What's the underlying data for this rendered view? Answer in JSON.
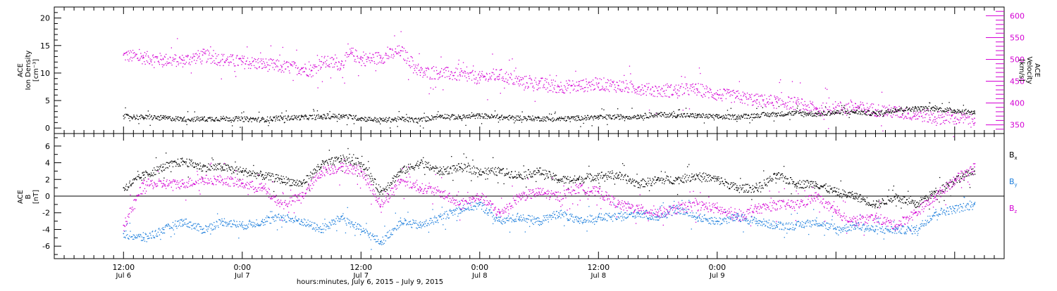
{
  "chart_data": [
    {
      "type": "scatter",
      "panel": "top",
      "ylabel_left": [
        "ACE",
        "Ion Density",
        "[cm⁻³]"
      ],
      "ylabel_right": [
        "ACE",
        "Velocity",
        "[km/s]"
      ],
      "ylim_left": [
        -1,
        22
      ],
      "ylim_right": [
        330,
        620
      ],
      "yticks_left": [
        0,
        5,
        10,
        15,
        20
      ],
      "ytick_labels_left": [
        "0",
        "5",
        "10",
        "15",
        "20"
      ],
      "yticks_right": [
        350,
        400,
        450,
        500,
        550,
        600
      ],
      "ytick_labels_right": [
        "350",
        "400",
        "450",
        "500",
        "550",
        "600"
      ],
      "grid": false,
      "colors": {
        "density": "#000000",
        "velocity": "#d400d4"
      },
      "series": [
        {
          "key": "density",
          "axis": "left",
          "color": "#000000",
          "x": [
            0,
            2,
            4,
            6,
            8,
            10,
            12,
            14,
            16,
            18,
            20,
            22,
            24,
            26,
            28,
            30,
            32,
            34,
            36,
            38,
            40,
            42,
            44,
            46,
            48,
            50,
            52,
            54,
            56,
            58,
            60,
            62,
            64,
            66,
            68,
            70,
            72,
            74,
            76,
            78,
            80,
            82,
            84,
            86
          ],
          "y": [
            2.2,
            2.0,
            1.9,
            1.7,
            1.7,
            1.8,
            1.7,
            1.6,
            1.9,
            2.0,
            2.1,
            2.3,
            1.8,
            1.5,
            1.7,
            1.5,
            2.3,
            2.0,
            2.3,
            2.0,
            1.9,
            1.8,
            1.7,
            1.9,
            2.0,
            2.1,
            2.2,
            2.5,
            2.4,
            2.3,
            2.1,
            2.1,
            2.4,
            2.6,
            2.8,
            2.6,
            2.9,
            3.0,
            2.7,
            3.4,
            3.6,
            3.6,
            3.2,
            2.9
          ]
        },
        {
          "key": "velocity",
          "axis": "right",
          "color": "#d400d4",
          "x": [
            0,
            2,
            4,
            6,
            8,
            10,
            12,
            14,
            16,
            18,
            19,
            20,
            22,
            23,
            24,
            26,
            28,
            30,
            32,
            34,
            36,
            38,
            40,
            42,
            44,
            46,
            48,
            50,
            52,
            54,
            56,
            58,
            60,
            62,
            64,
            66,
            68,
            70,
            72,
            74,
            76,
            78,
            80,
            82,
            84,
            86
          ],
          "y": [
            510,
            505,
            500,
            498,
            510,
            500,
            495,
            490,
            484,
            480,
            475,
            495,
            490,
            515,
            500,
            505,
            520,
            470,
            470,
            465,
            458,
            465,
            450,
            445,
            438,
            440,
            445,
            440,
            435,
            428,
            430,
            432,
            420,
            415,
            407,
            403,
            400,
            385,
            390,
            390,
            385,
            380,
            375,
            368,
            365,
            365
          ]
        }
      ]
    },
    {
      "type": "scatter",
      "panel": "bottom",
      "ylabel_left": [
        "ACE",
        "B",
        "[nT]"
      ],
      "ylim": [
        -7.5,
        7.5
      ],
      "yticks": [
        -6,
        -4,
        -2,
        0,
        2,
        4,
        6
      ],
      "ytick_labels": [
        "-6",
        "-4",
        "-2",
        "0",
        "2",
        "4",
        "6"
      ],
      "zero_line": true,
      "grid": false,
      "legend_position": "right",
      "colors": {
        "Bx": "#000000",
        "By": "#1e7fdc",
        "Bz": "#d400d4"
      },
      "series": [
        {
          "key": "Bx",
          "legend_main": "B",
          "legend_sub": "x",
          "color": "#000000",
          "x": [
            0,
            2,
            4,
            6,
            8,
            10,
            12,
            14,
            16,
            18,
            20,
            22,
            24,
            26,
            28,
            30,
            32,
            34,
            36,
            38,
            40,
            42,
            44,
            46,
            48,
            50,
            52,
            54,
            56,
            58,
            60,
            62,
            64,
            66,
            68,
            70,
            72,
            74,
            76,
            78,
            80,
            82,
            84,
            86
          ],
          "y": [
            1.0,
            2.5,
            3.5,
            4.2,
            3.5,
            3.5,
            3.0,
            2.5,
            2.0,
            1.5,
            3.8,
            4.5,
            4.0,
            0.5,
            3.0,
            4.0,
            3.0,
            3.5,
            3.0,
            3.0,
            2.5,
            3.0,
            2.0,
            2.0,
            2.5,
            2.5,
            1.5,
            2.0,
            2.0,
            2.5,
            2.0,
            1.0,
            1.0,
            2.5,
            1.5,
            1.5,
            0.5,
            0.0,
            -1.0,
            0.0,
            -1.0,
            0.5,
            2.0,
            3.0
          ]
        },
        {
          "key": "By",
          "legend_main": "B",
          "legend_sub": "y",
          "color": "#1e7fdc",
          "x": [
            0,
            2,
            4,
            6,
            8,
            10,
            12,
            14,
            16,
            18,
            20,
            22,
            24,
            26,
            28,
            30,
            32,
            34,
            36,
            38,
            40,
            42,
            44,
            46,
            48,
            50,
            52,
            54,
            56,
            58,
            60,
            62,
            64,
            66,
            68,
            70,
            72,
            74,
            76,
            78,
            80,
            82,
            84,
            86
          ],
          "y": [
            -4.5,
            -5.0,
            -4.0,
            -3.0,
            -4.0,
            -3.0,
            -3.5,
            -3.0,
            -2.5,
            -3.0,
            -4.0,
            -2.5,
            -4.0,
            -5.5,
            -3.0,
            -3.5,
            -2.5,
            -1.5,
            -1.0,
            -3.0,
            -2.5,
            -3.0,
            -2.0,
            -3.0,
            -2.5,
            -2.5,
            -2.0,
            -2.5,
            -1.5,
            -2.5,
            -3.0,
            -2.5,
            -3.0,
            -3.5,
            -3.5,
            -3.0,
            -4.0,
            -3.5,
            -4.0,
            -4.0,
            -4.0,
            -2.0,
            -1.5,
            -1.0
          ]
        },
        {
          "key": "Bz",
          "legend_main": "B",
          "legend_sub": "z",
          "color": "#d400d4",
          "x": [
            0,
            2,
            4,
            6,
            8,
            10,
            12,
            14,
            16,
            18,
            20,
            22,
            24,
            26,
            28,
            30,
            32,
            34,
            36,
            38,
            40,
            42,
            44,
            46,
            48,
            50,
            52,
            54,
            56,
            58,
            60,
            62,
            64,
            66,
            68,
            70,
            72,
            74,
            76,
            78,
            80,
            82,
            84,
            86
          ],
          "y": [
            -3.5,
            1.5,
            1.5,
            1.5,
            2.0,
            2.0,
            1.5,
            1.0,
            -1.0,
            0.0,
            3.0,
            3.5,
            3.0,
            -1.0,
            2.0,
            1.0,
            0.5,
            -1.0,
            0.0,
            -2.0,
            0.0,
            0.5,
            0.0,
            1.0,
            0.5,
            -1.0,
            -1.5,
            -2.0,
            -1.5,
            -1.0,
            -1.5,
            -2.5,
            -1.5,
            -1.0,
            -1.0,
            0.0,
            -2.0,
            -3.0,
            -2.5,
            -3.5,
            -2.0,
            0.0,
            2.0,
            3.5
          ]
        }
      ]
    }
  ],
  "x_axis": {
    "xlim_hours": [
      -7,
      89
    ],
    "ticks": [
      {
        "hour": 0,
        "time": "12:00",
        "date": "Jul 6"
      },
      {
        "hour": 12,
        "time": "0:00",
        "date": "Jul 7"
      },
      {
        "hour": 24,
        "time": "12:00",
        "date": "Jul 7"
      },
      {
        "hour": 36,
        "time": "0:00",
        "date": "Jul 8"
      },
      {
        "hour": 48,
        "time": "12:00",
        "date": "Jul 8"
      },
      {
        "hour": 60,
        "time": "0:00",
        "date": "Jul 9"
      }
    ],
    "label": "hours:minutes,  July  6, 2015 – July  9, 2015"
  }
}
